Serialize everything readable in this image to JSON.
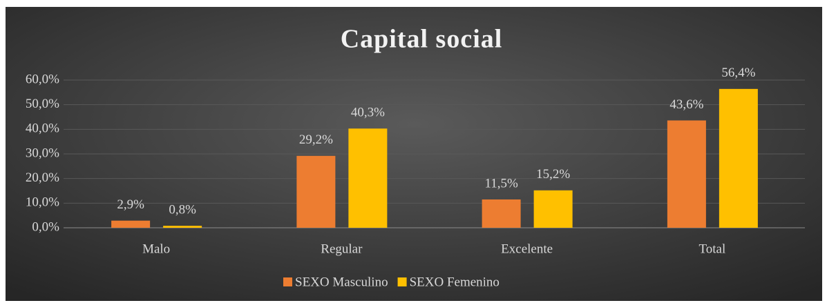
{
  "chart_data": {
    "type": "bar",
    "title": "Capital social",
    "categories": [
      "Malo",
      "Regular",
      "Excelente",
      "Total"
    ],
    "series": [
      {
        "name": "SEXO Masculino",
        "color": "#ed7d31",
        "values": [
          2.9,
          29.2,
          11.5,
          43.6
        ],
        "value_labels": [
          "2,9%",
          "29,2%",
          "11,5%",
          "43,6%"
        ]
      },
      {
        "name": "SEXO Femenino",
        "color": "#ffc000",
        "values": [
          0.8,
          40.3,
          15.2,
          56.4
        ],
        "value_labels": [
          "0,8%",
          "40,3%",
          "15,2%",
          "56,4%"
        ]
      }
    ],
    "ylim": [
      0,
      60
    ],
    "yticks": [
      {
        "value": 0,
        "label": "0,0%"
      },
      {
        "value": 10,
        "label": "10,0%"
      },
      {
        "value": 20,
        "label": "20,0%"
      },
      {
        "value": 30,
        "label": "30,0%"
      },
      {
        "value": 40,
        "label": "40,0%"
      },
      {
        "value": 50,
        "label": "50,0%"
      },
      {
        "value": 60,
        "label": "60,0%"
      }
    ],
    "grid": true,
    "legend": "bottom"
  }
}
